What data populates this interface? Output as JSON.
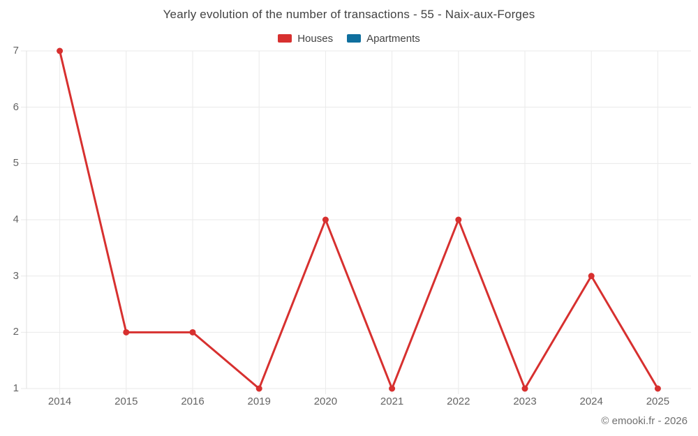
{
  "page": {
    "background": "#ffffff"
  },
  "chart_data": {
    "type": "line",
    "title": "Yearly evolution of the number of transactions - 55 - Naix-aux-Forges",
    "categories": [
      "2014",
      "2015",
      "2016",
      "2019",
      "2020",
      "2021",
      "2022",
      "2023",
      "2024",
      "2025"
    ],
    "series": [
      {
        "name": "Houses",
        "color": "#d7302f",
        "values": [
          7,
          2,
          2,
          1,
          4,
          1,
          4,
          1,
          3,
          1
        ]
      },
      {
        "name": "Apartments",
        "color": "#0f6f9e",
        "values": []
      }
    ],
    "xlabel": "",
    "ylabel": "",
    "ylim": [
      1,
      7
    ],
    "y_ticks": [
      1,
      2,
      3,
      4,
      5,
      6,
      7
    ],
    "grid": true,
    "legend_position": "top"
  },
  "footer": {
    "credit": "© emooki.fr - 2026"
  },
  "colors": {
    "grid": "#eaeaea",
    "axis": "#e0e0e0",
    "tick_label": "#646464",
    "title_text": "#424242",
    "footer_text": "#6f6f6f"
  }
}
